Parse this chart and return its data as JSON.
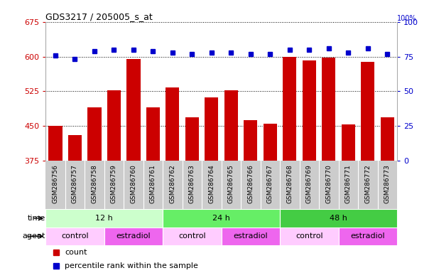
{
  "title": "GDS3217 / 205005_s_at",
  "samples": [
    "GSM286756",
    "GSM286757",
    "GSM286758",
    "GSM286759",
    "GSM286760",
    "GSM286761",
    "GSM286762",
    "GSM286763",
    "GSM286764",
    "GSM286765",
    "GSM286766",
    "GSM286767",
    "GSM286768",
    "GSM286769",
    "GSM286770",
    "GSM286771",
    "GSM286772",
    "GSM286773"
  ],
  "counts": [
    450,
    430,
    490,
    527,
    594,
    490,
    533,
    468,
    511,
    527,
    462,
    455,
    600,
    592,
    598,
    453,
    588,
    468
  ],
  "percentile_ranks": [
    76,
    73,
    79,
    80,
    80,
    79,
    78,
    77,
    78,
    78,
    77,
    77,
    80,
    80,
    81,
    78,
    81,
    77
  ],
  "ylim_left": [
    375,
    675
  ],
  "yticks_left": [
    375,
    450,
    525,
    600,
    675
  ],
  "ylim_right": [
    0,
    100
  ],
  "yticks_right": [
    0,
    25,
    50,
    75,
    100
  ],
  "bar_color": "#cc0000",
  "dot_color": "#0000cc",
  "bar_bottom": 375,
  "time_groups": [
    {
      "label": "12 h",
      "start": 0,
      "end": 6,
      "color": "#ccffcc"
    },
    {
      "label": "24 h",
      "start": 6,
      "end": 12,
      "color": "#66ee66"
    },
    {
      "label": "48 h",
      "start": 12,
      "end": 18,
      "color": "#44cc44"
    }
  ],
  "agent_groups": [
    {
      "label": "control",
      "start": 0,
      "end": 3,
      "color": "#ffccff"
    },
    {
      "label": "estradiol",
      "start": 3,
      "end": 6,
      "color": "#ee66ee"
    },
    {
      "label": "control",
      "start": 6,
      "end": 9,
      "color": "#ffccff"
    },
    {
      "label": "estradiol",
      "start": 9,
      "end": 12,
      "color": "#ee66ee"
    },
    {
      "label": "control",
      "start": 12,
      "end": 15,
      "color": "#ffccff"
    },
    {
      "label": "estradiol",
      "start": 15,
      "end": 18,
      "color": "#ee66ee"
    }
  ],
  "tick_label_color_left": "#cc0000",
  "tick_label_color_right": "#0000cc",
  "bg_color": "#ffffff",
  "grid_color": "#000000",
  "sample_bg_color": "#cccccc"
}
